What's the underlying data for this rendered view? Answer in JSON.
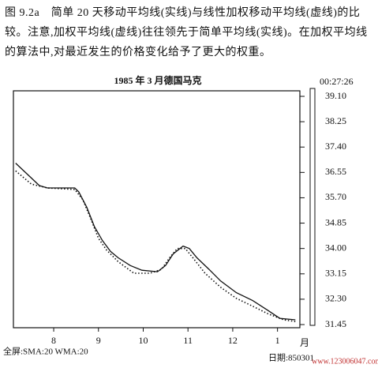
{
  "caption": "图 9.2a　简单 20 天移动平均线(实线)与线性加权移动平均线(虚线)的比较。注意,加权平均线(虚线)往往领先于简单平均线(实线)。在加权平均线的算法中,对最近发生的价格变化给予了更大的权重。",
  "chart_data": {
    "type": "line",
    "title": "1985 年 3 月德国马克",
    "timestamp": "00:27:26",
    "xlabel": "月",
    "status": "全屏:SMA:20 WMA:20",
    "date": "日期:850301",
    "watermark": "www.123006047.com",
    "xlim": [
      7.1,
      13.5
    ],
    "xticks": [
      8,
      9,
      10,
      11,
      12,
      {
        "value": 13,
        "label": "1"
      }
    ],
    "ylim": [
      31.45,
      39.1
    ],
    "yticks": [
      31.45,
      {
        "value": 32.3,
        "label": "32.30"
      },
      33.15,
      {
        "value": 34,
        "label": "34.00"
      },
      34.85,
      {
        "value": 35.7,
        "label": "35.70"
      },
      36.55,
      {
        "value": 37.4,
        "label": "37.40"
      },
      38.25,
      {
        "value": 39.1,
        "label": "39.10"
      }
    ],
    "series": [
      {
        "style": "solid",
        "color": "#111111",
        "x": [
          7.15,
          7.68,
          7.86,
          8.47,
          8.56,
          8.74,
          8.91,
          9.09,
          9.27,
          9.44,
          9.71,
          9.97,
          10.32,
          10.5,
          10.67,
          10.89,
          11.03,
          11.2,
          11.47,
          11.73,
          12.08,
          12.44,
          12.79,
          13.05,
          13.4
        ],
        "values": [
          36.86,
          36.11,
          36.03,
          36.03,
          35.9,
          35.38,
          34.73,
          34.26,
          33.9,
          33.69,
          33.43,
          33.27,
          33.22,
          33.43,
          33.82,
          34.08,
          34.0,
          33.69,
          33.3,
          32.91,
          32.52,
          32.26,
          31.92,
          31.66,
          31.61
        ]
      },
      {
        "style": "dotted",
        "color": "#111111",
        "x": [
          7.15,
          7.5,
          7.86,
          8.47,
          8.65,
          8.83,
          9.0,
          9.18,
          9.44,
          9.79,
          10.15,
          10.41,
          10.59,
          10.76,
          10.94,
          11.11,
          11.38,
          11.73,
          12.08,
          12.44,
          12.79,
          13.14,
          13.4
        ],
        "values": [
          36.6,
          36.16,
          36.03,
          35.98,
          35.64,
          34.99,
          34.34,
          33.95,
          33.56,
          33.17,
          33.17,
          33.3,
          33.69,
          34.0,
          34.0,
          33.69,
          33.17,
          32.7,
          32.33,
          32.07,
          31.81,
          31.61,
          31.55
        ]
      }
    ]
  }
}
